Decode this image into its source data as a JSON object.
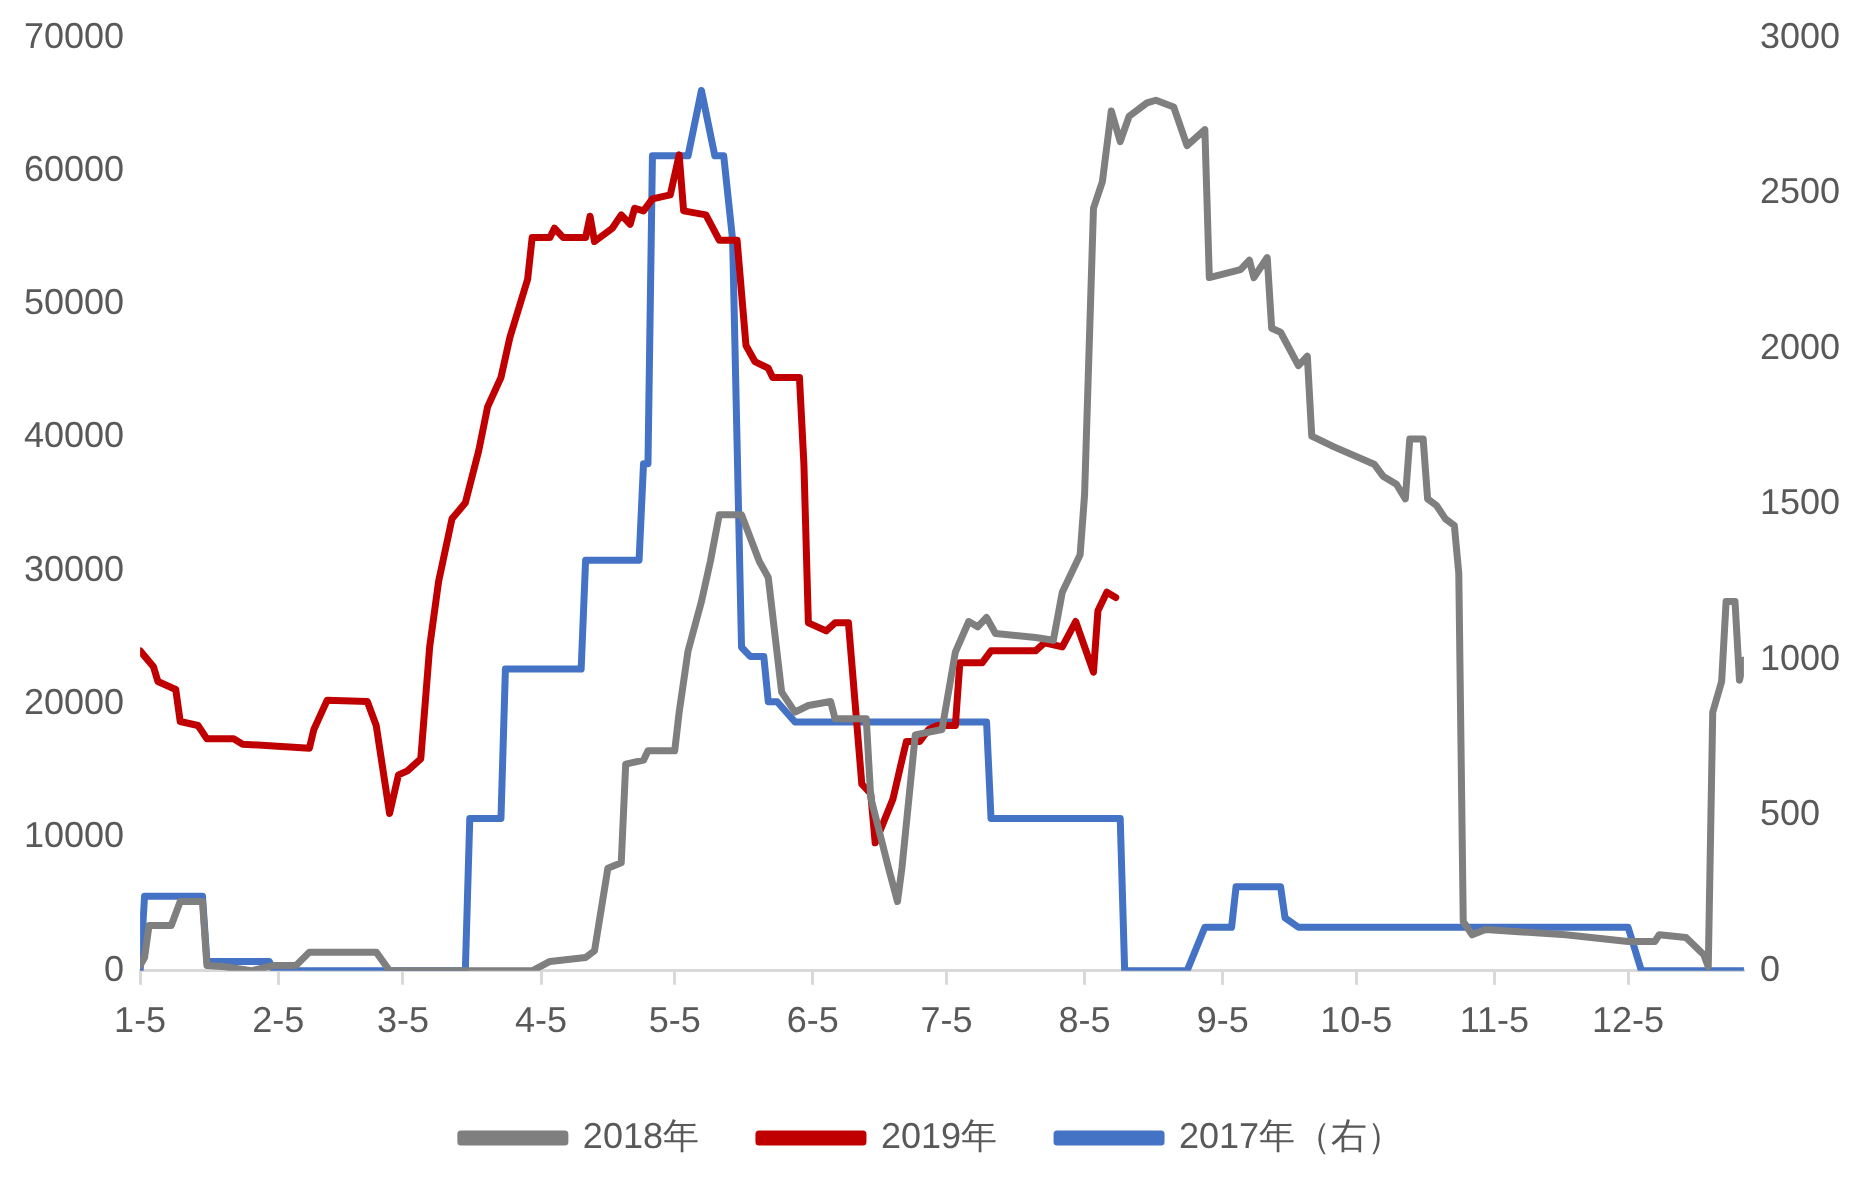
{
  "chart_data": {
    "type": "line",
    "legend": "bottom",
    "xlim": [
      "--01-05",
      "--12-31"
    ],
    "xticks": [
      {
        "value": "--01-05",
        "label": "1-5"
      },
      {
        "value": "--02-05",
        "label": "2-5"
      },
      {
        "value": "--03-05",
        "label": "3-5"
      },
      {
        "value": "--04-05",
        "label": "4-5"
      },
      {
        "value": "--05-05",
        "label": "5-5"
      },
      {
        "value": "--06-05",
        "label": "6-5"
      },
      {
        "value": "--07-05",
        "label": "7-5"
      },
      {
        "value": "--08-05",
        "label": "8-5"
      },
      {
        "value": "--09-05",
        "label": "9-5"
      },
      {
        "value": "--10-05",
        "label": "10-5"
      },
      {
        "value": "--11-05",
        "label": "11-5"
      },
      {
        "value": "--12-05",
        "label": "12-5"
      }
    ],
    "ylim": [
      0,
      70000
    ],
    "yticks": [
      0,
      10000,
      20000,
      30000,
      40000,
      50000,
      60000,
      70000
    ],
    "y2lim": [
      0,
      3000
    ],
    "y2ticks": [
      0,
      500,
      1000,
      1500,
      2000,
      2500,
      3000
    ],
    "series": [
      {
        "name": "2018年",
        "color": "#7f7f7f",
        "x": [
          "--01-05",
          "--01-06",
          "--01-07",
          "--01-12",
          "--01-14",
          "--01-19",
          "--01-20",
          "--01-24",
          "--01-30",
          "--02-04",
          "--02-09",
          "--02-12",
          "--02-27",
          "--03-02",
          "--04-03",
          "--04-07",
          "--04-15",
          "--04-17",
          "--04-20",
          "--04-23",
          "--04-24",
          "--04-28",
          "--04-29",
          "--05-05",
          "--05-06",
          "--05-08",
          "--05-11",
          "--05-13",
          "--05-15",
          "--05-20",
          "--05-24",
          "--05-26",
          "--05-29",
          "--06-01",
          "--06-04",
          "--06-09",
          "--06-10",
          "--06-17",
          "--06-18",
          "--06-22",
          "--06-24",
          "--06-25",
          "--06-28",
          "--07-04",
          "--07-07",
          "--07-10",
          "--07-12",
          "--07-14",
          "--07-16",
          "--07-25",
          "--07-29",
          "--07-31",
          "--08-02",
          "--08-04",
          "--08-05",
          "--08-07",
          "--08-09",
          "--08-11",
          "--08-13",
          "--08-15",
          "--08-19",
          "--08-21",
          "--08-25",
          "--08-28",
          "--09-01",
          "--09-02",
          "--09-09",
          "--09-11",
          "--09-12",
          "--09-15",
          "--09-16",
          "--09-18",
          "--09-22",
          "--09-24",
          "--09-25",
          "--09-30",
          "--10-09",
          "--10-11",
          "--10-14",
          "--10-16",
          "--10-17",
          "--10-20",
          "--10-21",
          "--10-23",
          "--10-25",
          "--10-27",
          "--10-28",
          "--10-29",
          "--10-31",
          "--11-03",
          "--11-21",
          "--12-05",
          "--12-11",
          "--12-12",
          "--12-18",
          "--12-22",
          "--12-23",
          "--12-24",
          "--12-26",
          "--12-27",
          "--12-29",
          "--12-30",
          "--12-31"
        ],
        "values": [
          400,
          1000,
          3400,
          3400,
          5200,
          5200,
          400,
          300,
          0,
          400,
          400,
          1400,
          1400,
          0,
          0,
          700,
          1000,
          1500,
          7700,
          8100,
          15500,
          15800,
          16500,
          16500,
          19400,
          24000,
          27700,
          30700,
          34200,
          34200,
          30700,
          29500,
          20900,
          19400,
          19900,
          20200,
          18900,
          18900,
          13000,
          7700,
          5200,
          7700,
          17700,
          18100,
          23900,
          26200,
          25800,
          26500,
          25300,
          25000,
          24800,
          28400,
          29800,
          31200,
          35700,
          57200,
          59200,
          64500,
          62200,
          64100,
          65100,
          65300,
          64800,
          61900,
          63100,
          52000,
          52600,
          53300,
          52000,
          53500,
          48200,
          47900,
          45400,
          46100,
          40100,
          39300,
          38000,
          37100,
          36500,
          35400,
          39900,
          39900,
          35400,
          34900,
          33900,
          33400,
          29800,
          3700,
          2700,
          3100,
          2700,
          2200,
          2200,
          2700,
          2500,
          1200,
          300,
          19400,
          21700,
          27700,
          27700,
          21800,
          23300
        ]
      },
      {
        "name": "2019年",
        "color": "#c00000",
        "x": [
          "--01-05",
          "--01-08",
          "--01-09",
          "--01-13",
          "--01-14",
          "--01-18",
          "--01-20",
          "--01-26",
          "--01-28",
          "--02-12",
          "--02-13",
          "--02-16",
          "--02-25",
          "--02-27",
          "--03-02",
          "--03-04",
          "--03-06",
          "--03-09",
          "--03-11",
          "--03-13",
          "--03-16",
          "--03-19",
          "--03-22",
          "--03-24",
          "--03-27",
          "--03-29",
          "--04-02",
          "--04-03",
          "--04-07",
          "--04-08",
          "--04-10",
          "--04-15",
          "--04-16",
          "--04-17",
          "--04-21",
          "--04-23",
          "--04-25",
          "--04-26",
          "--04-28",
          "--04-30",
          "--05-04",
          "--05-06",
          "--05-07",
          "--05-12",
          "--05-15",
          "--05-19",
          "--05-21",
          "--05-23",
          "--05-26",
          "--05-27",
          "--06-02",
          "--06-03",
          "--06-04",
          "--06-08",
          "--06-10",
          "--06-13",
          "--06-16",
          "--06-18",
          "--06-19",
          "--06-23",
          "--06-25",
          "--06-26",
          "--06-29",
          "--07-01",
          "--07-03",
          "--07-07",
          "--07-08",
          "--07-13",
          "--07-15",
          "--07-25",
          "--07-27",
          "--07-31",
          "--08-03",
          "--08-07",
          "--08-08",
          "--08-10",
          "--08-12"
        ],
        "values": [
          24000,
          22800,
          21700,
          21100,
          18700,
          18400,
          17400,
          17400,
          17000,
          16700,
          18100,
          20300,
          20200,
          18400,
          11800,
          14700,
          15000,
          15900,
          24300,
          29200,
          33900,
          35100,
          39000,
          42300,
          44500,
          47500,
          51900,
          55000,
          55000,
          55700,
          55000,
          55000,
          56600,
          54700,
          55700,
          56700,
          56000,
          57200,
          57000,
          57900,
          58200,
          61200,
          57000,
          56700,
          54800,
          54800,
          46900,
          45700,
          45200,
          44500,
          44500,
          38000,
          26100,
          25500,
          26100,
          26100,
          14000,
          13300,
          9600,
          12900,
          15800,
          17200,
          17200,
          18100,
          18400,
          18400,
          23100,
          23100,
          24000,
          24000,
          24600,
          24300,
          26200,
          22400,
          27000,
          28400,
          28000
        ]
      },
      {
        "name": "2017年（右）",
        "color": "#4472c4",
        "axis": "y2",
        "x": [
          "--01-05",
          "--01-06",
          "--01-19",
          "--01-20",
          "--02-03",
          "--02-04",
          "--03-19",
          "--03-20",
          "--03-27",
          "--03-28",
          "--04-14",
          "--04-15",
          "--04-27",
          "--04-28",
          "--04-29",
          "--04-30",
          "--05-08",
          "--05-11",
          "--05-14",
          "--05-16",
          "--05-18",
          "--05-20",
          "--05-22",
          "--05-25",
          "--05-26",
          "--05-28",
          "--06-01",
          "--07-14",
          "--07-15",
          "--08-13",
          "--08-14",
          "--08-28",
          "--09-01",
          "--09-07",
          "--09-08",
          "--09-18",
          "--09-19",
          "--09-22",
          "--12-05",
          "--12-08",
          "--12-31"
        ],
        "values": [
          0,
          240,
          240,
          30,
          30,
          0,
          0,
          490,
          490,
          970,
          970,
          1320,
          1320,
          1630,
          1630,
          2620,
          2620,
          2830,
          2620,
          2620,
          2350,
          1040,
          1010,
          1010,
          865,
          865,
          800,
          800,
          490,
          490,
          0,
          0,
          140,
          140,
          270,
          270,
          170,
          140,
          140,
          0,
          0
        ]
      }
    ]
  }
}
